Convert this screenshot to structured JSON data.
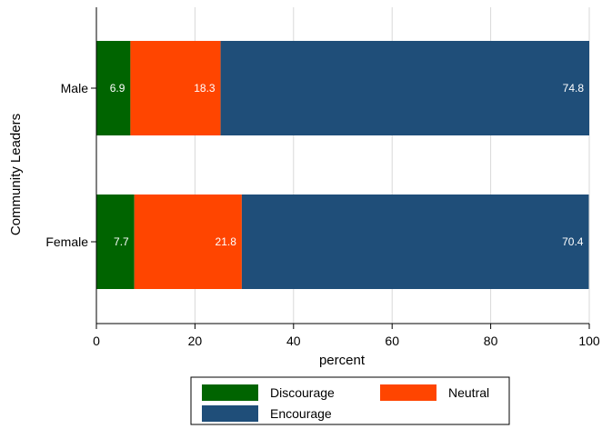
{
  "chart_data": {
    "type": "bar",
    "orientation": "horizontal",
    "stacked": true,
    "title": "",
    "xlabel": "percent",
    "ylabel": "Community Leaders",
    "categories": [
      "Male",
      "Female"
    ],
    "series": [
      {
        "name": "Discourage",
        "color": "#006400",
        "values": [
          6.9,
          7.7
        ]
      },
      {
        "name": "Neutral",
        "color": "#ff4500",
        "values": [
          18.3,
          21.8
        ]
      },
      {
        "name": "Encourage",
        "color": "#1f4e79",
        "values": [
          74.8,
          70.4
        ]
      }
    ],
    "xlim": [
      0,
      100
    ],
    "x_ticks": [
      0,
      20,
      40,
      60,
      80,
      100
    ],
    "grid": "vertical",
    "legend_position": "bottom"
  }
}
